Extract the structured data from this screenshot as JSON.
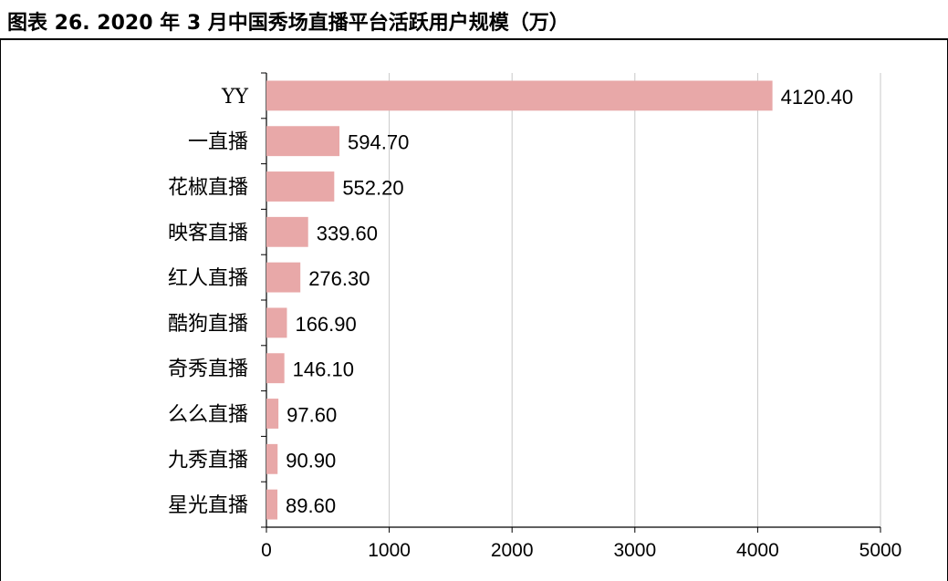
{
  "title": "图表 26. 2020 年 3 月中国秀场直播平台活跃用户规模（万）",
  "colors": {
    "bar": "#e8a8a8",
    "grid": "#c8c8c8",
    "axis": "#000000"
  },
  "chart_data": {
    "type": "bar",
    "orientation": "horizontal",
    "categories": [
      "YY",
      "一直播",
      "花椒直播",
      "映客直播",
      "红人直播",
      "酷狗直播",
      "奇秀直播",
      "么么直播",
      "九秀直播",
      "星光直播"
    ],
    "values": [
      4120.4,
      594.7,
      552.2,
      339.6,
      276.3,
      166.9,
      146.1,
      97.6,
      90.9,
      89.6
    ],
    "value_labels": [
      "4120.40",
      "594.70",
      "552.20",
      "339.60",
      "276.30",
      "166.90",
      "146.10",
      "97.60",
      "90.90",
      "89.60"
    ],
    "xlim": [
      0,
      5000
    ],
    "xticks": [
      0,
      1000,
      2000,
      3000,
      4000,
      5000
    ],
    "grid": true,
    "legend": false
  }
}
